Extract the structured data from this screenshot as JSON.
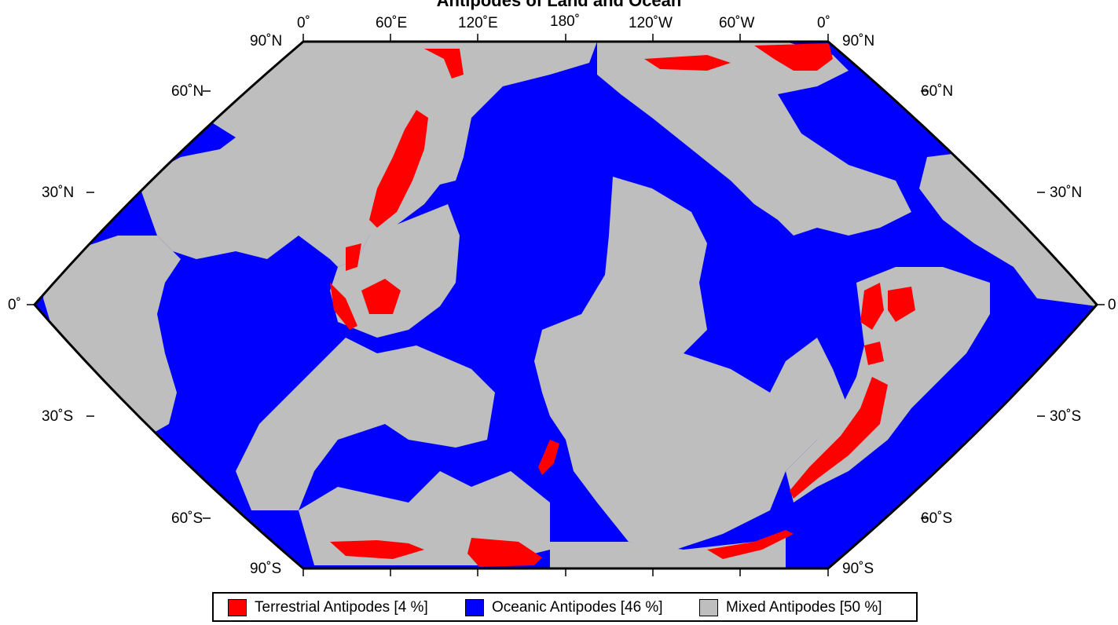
{
  "title": "Antipodes of Land and Ocean",
  "colors": {
    "terrestrial": "#ff0000",
    "oceanic": "#0000ff",
    "mixed": "#bebebe",
    "outline": "#000000"
  },
  "top_labels": [
    "0˚",
    "60˚E",
    "120˚E",
    "180˚",
    "120˚W",
    "60˚W",
    "0˚"
  ],
  "left_labels": [
    "90˚N",
    "60˚N",
    "30˚N",
    "0˚",
    "30˚S",
    "60˚S",
    "90˚S"
  ],
  "right_labels": [
    "90˚N",
    "60˚N",
    "30˚N",
    "0",
    "30˚S",
    "60˚S",
    "90˚S"
  ],
  "legend": [
    {
      "label": "Terrestrial Antipodes [4 %]",
      "category": "terrestrial"
    },
    {
      "label": "Oceanic Antipodes [46 %]",
      "category": "oceanic"
    },
    {
      "label": "Mixed Antipodes [50 %]",
      "category": "mixed"
    }
  ]
}
